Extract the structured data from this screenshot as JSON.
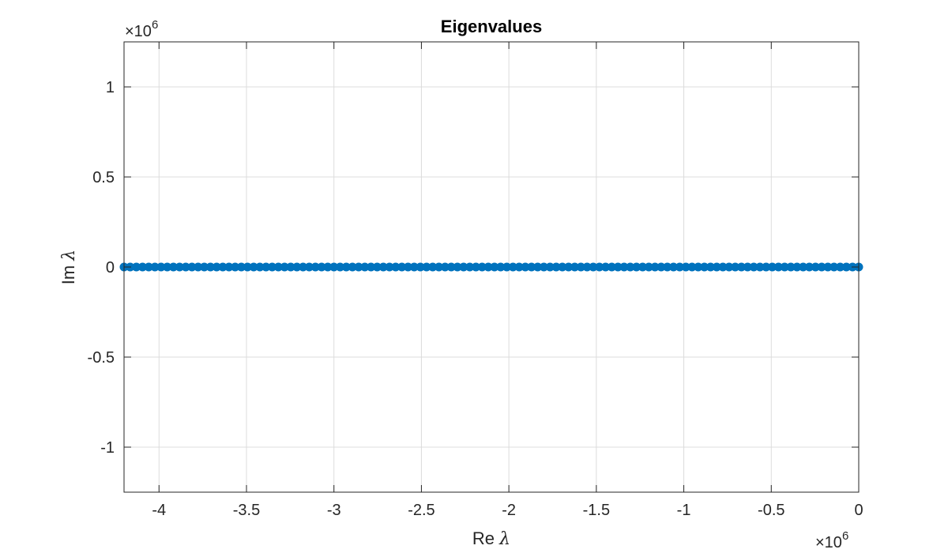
{
  "chart_data": {
    "type": "scatter",
    "title": "Eigenvalues",
    "xlabel": {
      "prefix": "Re ",
      "symbol": "λ"
    },
    "ylabel": {
      "prefix": "Im ",
      "symbol": "λ"
    },
    "xlim": [
      -4.2,
      0
    ],
    "ylim": [
      -1.25,
      1.25
    ],
    "x_exponent": {
      "base": "×10",
      "power": "6"
    },
    "y_exponent": {
      "base": "×10",
      "power": "6"
    },
    "x_ticks": [
      -4,
      -3.5,
      -3,
      -2.5,
      -2,
      -1.5,
      -1,
      -0.5,
      0
    ],
    "x_tick_labels": [
      "-4",
      "-3.5",
      "-3",
      "-2.5",
      "-2",
      "-1.5",
      "-1",
      "-0.5",
      "0"
    ],
    "y_ticks": [
      -1,
      -0.5,
      0,
      0.5,
      1
    ],
    "y_tick_labels": [
      "-1",
      "-0.5",
      "0",
      "0.5",
      "1"
    ],
    "grid": true,
    "marker_color": "#0072BD",
    "series": [
      {
        "x_range": [
          -4.2,
          0
        ],
        "y": 0,
        "count": 120
      }
    ]
  }
}
